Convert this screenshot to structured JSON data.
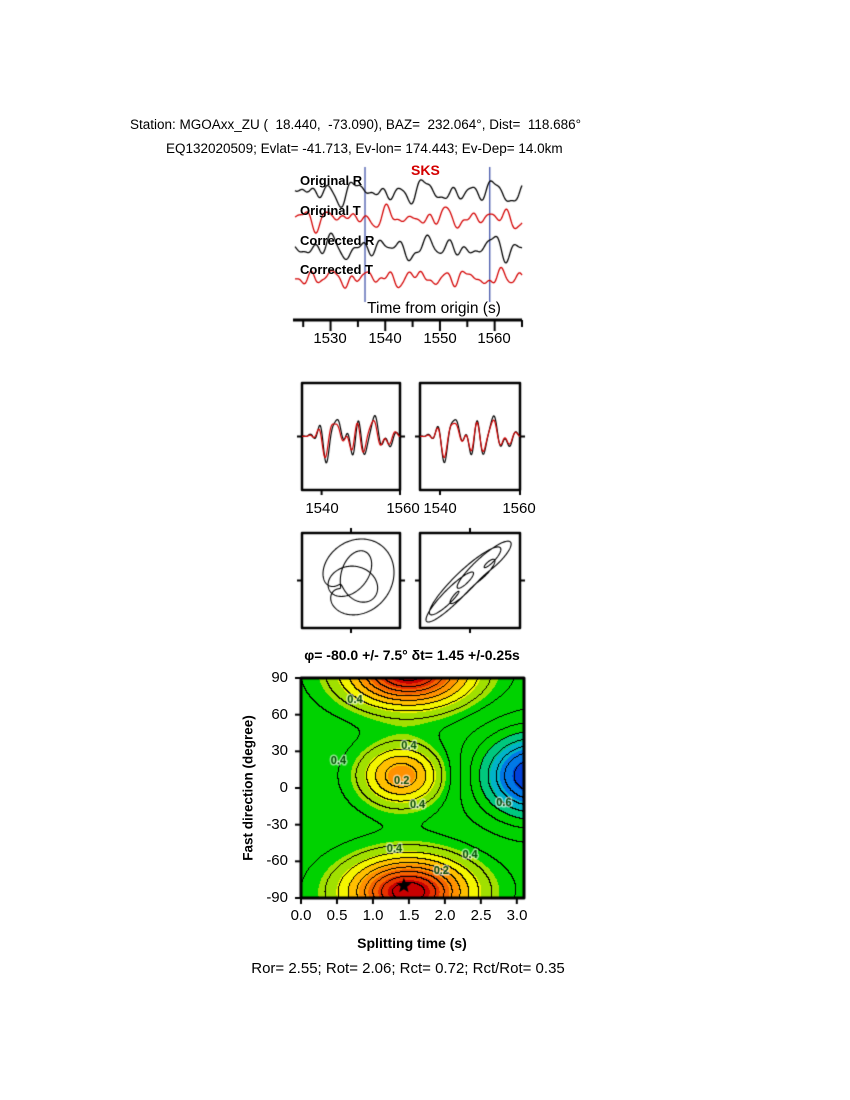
{
  "header": {
    "line1": "Station: MGOAxx_ZU (  18.440,  -73.090), BAZ=  232.064°, Dist=  118.686°",
    "line2": "EQ132020509; Evlat= -41.713, Ev-lon= 174.443; Ev-Dep= 14.0km"
  },
  "footer": {
    "results": "Ror= 2.55; Rot= 2.06; Rct= 0.72; Rct/Rot= 0.35"
  },
  "chart_data": [
    {
      "id": "seismogram-traces",
      "type": "line",
      "xlabel": "Time from origin (s)",
      "x_range": [
        1523.5,
        1565
      ],
      "xticks": [
        "1530",
        "1540",
        "1550",
        "1560"
      ],
      "xtick_values": [
        1530,
        1540,
        1550,
        1560
      ],
      "minor_tick_step": 5,
      "phase_label": "SKS",
      "phase_color": "#d40000",
      "window_lines": {
        "color": "#4455aa",
        "times": [
          1536.3,
          1559.1
        ]
      },
      "note": "trace shapes are visual estimates synthesized from the sinusoid components below",
      "traces": [
        {
          "label": "Original R",
          "color": "#000000",
          "components": [
            {
              "f": 0.09,
              "a": 3.5,
              "p": 0.8
            },
            {
              "f": 0.16,
              "a": 4.5,
              "p": 2.7
            },
            {
              "f": 0.23,
              "a": 5.0,
              "p": 5.0
            },
            {
              "f": 0.31,
              "a": 3.2,
              "p": 1.4
            },
            {
              "f": 0.47,
              "a": 2.0,
              "p": 3.9
            }
          ]
        },
        {
          "label": "Original T",
          "color": "#d40000",
          "components": [
            {
              "f": 0.11,
              "a": 3.0,
              "p": 1.9
            },
            {
              "f": 0.19,
              "a": 4.0,
              "p": 0.3
            },
            {
              "f": 0.27,
              "a": 4.2,
              "p": 4.4
            },
            {
              "f": 0.36,
              "a": 2.6,
              "p": 2.2
            },
            {
              "f": 0.5,
              "a": 1.6,
              "p": 5.6
            }
          ]
        },
        {
          "label": "Corrected R",
          "color": "#000000",
          "components": [
            {
              "f": 0.1,
              "a": 3.8,
              "p": 4.2
            },
            {
              "f": 0.17,
              "a": 4.6,
              "p": 1.1
            },
            {
              "f": 0.24,
              "a": 4.8,
              "p": 3.3
            },
            {
              "f": 0.33,
              "a": 3.0,
              "p": 0.2
            },
            {
              "f": 0.45,
              "a": 2.2,
              "p": 2.8
            }
          ]
        },
        {
          "label": "Corrected T",
          "color": "#d40000",
          "components": [
            {
              "f": 0.12,
              "a": 2.8,
              "p": 3.6
            },
            {
              "f": 0.2,
              "a": 3.6,
              "p": 5.2
            },
            {
              "f": 0.29,
              "a": 3.4,
              "p": 1.8
            },
            {
              "f": 0.4,
              "a": 2.2,
              "p": 0.6
            },
            {
              "f": 0.55,
              "a": 1.4,
              "p": 4.0
            }
          ]
        }
      ]
    },
    {
      "id": "windowed-waveforms",
      "type": "line",
      "panels": [
        {
          "xticks": [
            "1540",
            "1560"
          ],
          "xtick_values": [
            1540,
            1560
          ],
          "x_range": [
            1535,
            1560
          ],
          "series": [
            {
              "name": "R",
              "color": "#000000",
              "components": [
                {
                  "f": 0.12,
                  "a": 9,
                  "p": 0.5
                },
                {
                  "f": 0.2,
                  "a": 12,
                  "p": 2.9
                },
                {
                  "f": 0.3,
                  "a": 10,
                  "p": 5.3
                },
                {
                  "f": 0.42,
                  "a": 6,
                  "p": 1.6
                }
              ]
            },
            {
              "name": "T",
              "color": "#d40000",
              "components": [
                {
                  "f": 0.12,
                  "a": 7,
                  "p": 0.9
                },
                {
                  "f": 0.2,
                  "a": 10,
                  "p": 3.4
                },
                {
                  "f": 0.3,
                  "a": 8,
                  "p": 5.9
                },
                {
                  "f": 0.42,
                  "a": 5,
                  "p": 2.1
                }
              ]
            }
          ]
        },
        {
          "xticks": [
            "1540",
            "1560"
          ],
          "xtick_values": [
            1540,
            1560
          ],
          "x_range": [
            1535,
            1560
          ],
          "series": [
            {
              "name": "R",
              "color": "#000000",
              "components": [
                {
                  "f": 0.12,
                  "a": 9,
                  "p": 0.7
                },
                {
                  "f": 0.2,
                  "a": 12,
                  "p": 3.1
                },
                {
                  "f": 0.3,
                  "a": 10,
                  "p": 5.5
                },
                {
                  "f": 0.42,
                  "a": 6,
                  "p": 1.8
                }
              ]
            },
            {
              "name": "T",
              "color": "#d40000",
              "components": [
                {
                  "f": 0.12,
                  "a": 6.5,
                  "p": 0.8
                },
                {
                  "f": 0.2,
                  "a": 10,
                  "p": 3.2
                },
                {
                  "f": 0.3,
                  "a": 8.5,
                  "p": 5.6
                },
                {
                  "f": 0.42,
                  "a": 5,
                  "p": 1.9
                }
              ]
            }
          ]
        }
      ]
    },
    {
      "id": "particle-motion",
      "type": "scatter",
      "panels": [
        {
          "x_components": [
            {
              "f": 3,
              "a": 1.0,
              "p": 0.0
            },
            {
              "f": 5,
              "a": 0.55,
              "p": 1.1
            },
            {
              "f": 2,
              "a": 0.5,
              "p": 2.3
            }
          ],
          "y_components": [
            {
              "f": 3,
              "a": 0.6,
              "p": 1.2
            },
            {
              "f": 5,
              "a": 0.5,
              "p": 2.6
            },
            {
              "f": 2,
              "a": 0.65,
              "p": 4.0
            }
          ]
        },
        {
          "x_components": [
            {
              "f": 2,
              "a": 1.0,
              "p": 0.2
            },
            {
              "f": 5,
              "a": 0.45,
              "p": 0.9
            },
            {
              "f": 7,
              "a": 0.3,
              "p": 1.5
            }
          ],
          "y_components": [
            {
              "f": 2,
              "a": 0.9,
              "p": 0.55
            },
            {
              "f": 5,
              "a": 0.4,
              "p": 1.3
            },
            {
              "f": 7,
              "a": 0.3,
              "p": 2.0
            }
          ]
        }
      ]
    },
    {
      "id": "splitting-misfit-map",
      "type": "heatmap",
      "title": "φ= -80.0 +/- 7.5° δt= 1.45 +/-0.25s",
      "xlabel": "Splitting time (s)",
      "ylabel": "Fast direction (degree)",
      "xlim": [
        0,
        3.1
      ],
      "ylim": [
        -90,
        90
      ],
      "xticks": [
        "0.0",
        "0.5",
        "1.0",
        "1.5",
        "2.0",
        "2.5",
        "3.0"
      ],
      "xtick_values": [
        0,
        0.5,
        1,
        1.5,
        2,
        2.5,
        3
      ],
      "yticks": [
        "90",
        "60",
        "30",
        "0",
        "-30",
        "-60",
        "-90"
      ],
      "ytick_values": [
        90,
        60,
        30,
        0,
        -30,
        -60,
        -90
      ],
      "best_fit": {
        "fast_direction_deg": -80.0,
        "fast_direction_err_deg": 7.5,
        "delay_time_s": 1.45,
        "delay_time_err_s": 0.25,
        "marker": "star",
        "marker_pos": [
          1.43,
          -80
        ]
      },
      "contour_interval": 0.05,
      "field": {
        "base": 0.47,
        "v_period": 180,
        "gaussians": [
          {
            "u": 1.5,
            "v": -85,
            "su": 0.85,
            "sv": 28,
            "amp": -0.45
          },
          {
            "u": 1.4,
            "v": 10,
            "su": 0.55,
            "sv": 24,
            "amp": -0.26
          },
          {
            "u": 3.25,
            "v": 10,
            "su": 0.75,
            "sv": 35,
            "amp": 0.38
          }
        ]
      },
      "color_bands": [
        {
          "max": 0.07,
          "color": "#c80000"
        },
        {
          "max": 0.12,
          "color": "#e63200"
        },
        {
          "max": 0.18,
          "color": "#f56400"
        },
        {
          "max": 0.24,
          "color": "#ff9100"
        },
        {
          "max": 0.3,
          "color": "#ffc000"
        },
        {
          "max": 0.36,
          "color": "#f5f500"
        },
        {
          "max": 0.42,
          "color": "#a0e000"
        },
        {
          "max": 0.6,
          "color": "#00d200"
        },
        {
          "max": 0.66,
          "color": "#00c87d"
        },
        {
          "max": 0.72,
          "color": "#00b4c8"
        },
        {
          "max": 0.79,
          "color": "#0078e6"
        },
        {
          "max": 1.0,
          "color": "#0041d9"
        }
      ],
      "contour_labels": [
        {
          "text": "0.4",
          "u": 0.75,
          "v": 72
        },
        {
          "text": "0.4",
          "u": 0.52,
          "v": 22
        },
        {
          "text": "0.4",
          "u": 1.5,
          "v": 34
        },
        {
          "text": "0.2",
          "u": 1.4,
          "v": 6
        },
        {
          "text": "0.4",
          "u": 1.62,
          "v": -14
        },
        {
          "text": "0.6",
          "u": 2.82,
          "v": -12
        },
        {
          "text": "0.4",
          "u": 1.3,
          "v": -50
        },
        {
          "text": "0.2",
          "u": 1.95,
          "v": -68
        },
        {
          "text": "0.4",
          "u": 2.35,
          "v": -55
        }
      ]
    }
  ]
}
